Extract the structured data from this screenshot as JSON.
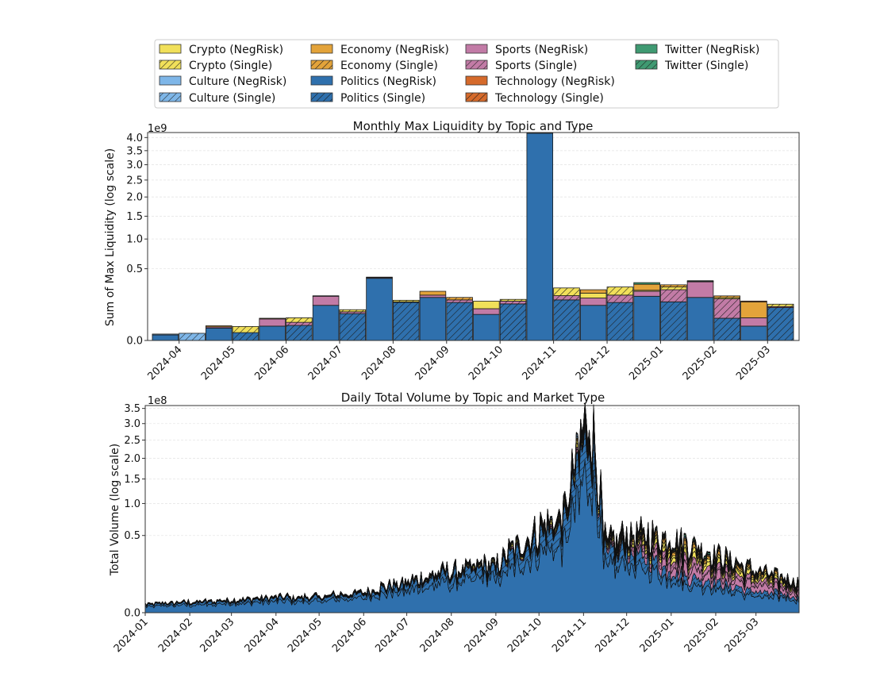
{
  "legend": {
    "entries": [
      {
        "label": "Crypto (NegRisk)",
        "color": "#f1e05a",
        "hatch": false
      },
      {
        "label": "Crypto (Single)",
        "color": "#f1e05a",
        "hatch": true
      },
      {
        "label": "Culture (NegRisk)",
        "color": "#7eb6e8",
        "hatch": false
      },
      {
        "label": "Culture (Single)",
        "color": "#7eb6e8",
        "hatch": true
      },
      {
        "label": "Economy (NegRisk)",
        "color": "#e3a33a",
        "hatch": false
      },
      {
        "label": "Economy (Single)",
        "color": "#e3a33a",
        "hatch": true
      },
      {
        "label": "Politics (NegRisk)",
        "color": "#2f70ad",
        "hatch": false
      },
      {
        "label": "Politics (Single)",
        "color": "#2f70ad",
        "hatch": true
      },
      {
        "label": "Sports (NegRisk)",
        "color": "#c27ba6",
        "hatch": false
      },
      {
        "label": "Sports (Single)",
        "color": "#c27ba6",
        "hatch": true
      },
      {
        "label": "Technology (NegRisk)",
        "color": "#d56a2b",
        "hatch": false
      },
      {
        "label": "Technology (Single)",
        "color": "#d56a2b",
        "hatch": true
      },
      {
        "label": "Twitter (NegRisk)",
        "color": "#3f9a72",
        "hatch": false
      },
      {
        "label": "Twitter (Single)",
        "color": "#3f9a72",
        "hatch": true
      }
    ]
  },
  "chart_data": [
    {
      "type": "bar",
      "stacked": true,
      "title": "Monthly Max Liquidity by Topic and Type",
      "ylabel": "Sum of Max Liquidity (log scale)",
      "multiplier": "1e9",
      "yscale": "sqrt",
      "ylim": [
        0,
        4.2
      ],
      "yticks": [
        "0.0",
        "0.5",
        "1.0",
        "1.5",
        "2.0",
        "2.5",
        "3.0",
        "3.5",
        "4.0"
      ],
      "categories": [
        "2024-04",
        "2024-05",
        "2024-06",
        "2024-07",
        "2024-08",
        "2024-09",
        "2024-10",
        "2024-11",
        "2024-12",
        "2025-01",
        "2025-02",
        "2025-03"
      ],
      "units": "billions",
      "bars": [
        {
          "month": "2024-04",
          "type": "NegRisk",
          "segments": {
            "Politics": 0.003,
            "Culture": 0.001
          }
        },
        {
          "month": "2024-04",
          "type": "Single",
          "segments": {
            "Culture": 0.005
          }
        },
        {
          "month": "2024-05",
          "type": "NegRisk",
          "segments": {
            "Politics": 0.015,
            "Sports": 0.003,
            "Economy": 0.003
          }
        },
        {
          "month": "2024-05",
          "type": "Single",
          "segments": {
            "Politics": 0.006,
            "Crypto": 0.013
          }
        },
        {
          "month": "2024-06",
          "type": "NegRisk",
          "segments": {
            "Politics": 0.02,
            "Sports": 0.025,
            "Economy": 0.003
          }
        },
        {
          "month": "2024-06",
          "type": "Single",
          "segments": {
            "Politics": 0.022,
            "Sports": 0.01,
            "Crypto": 0.018
          }
        },
        {
          "month": "2024-07",
          "type": "NegRisk",
          "segments": {
            "Politics": 0.12,
            "Sports": 0.07,
            "Economy": 0.004
          }
        },
        {
          "month": "2024-07",
          "type": "Single",
          "segments": {
            "Politics": 0.07,
            "Sports": 0.01,
            "Crypto": 0.012
          }
        },
        {
          "month": "2024-08",
          "type": "NegRisk",
          "segments": {
            "Politics": 0.375,
            "Sports": 0.009,
            "Economy": 0.006
          }
        },
        {
          "month": "2024-08",
          "type": "Single",
          "segments": {
            "Politics": 0.141,
            "Sports": 0.004,
            "Crypto": 0.012
          }
        },
        {
          "month": "2024-09",
          "type": "NegRisk",
          "segments": {
            "Politics": 0.18,
            "Sports": 0.02,
            "Economy": 0.035
          }
        },
        {
          "month": "2024-09",
          "type": "Single",
          "segments": {
            "Politics": 0.14,
            "Sports": 0.02,
            "Economy": 0.02
          }
        },
        {
          "month": "2024-10",
          "type": "NegRisk",
          "segments": {
            "Politics": 0.066,
            "Sports": 0.032,
            "Crypto": 0.052
          }
        },
        {
          "month": "2024-10",
          "type": "Single",
          "segments": {
            "Politics": 0.13,
            "Sports": 0.02,
            "Crypto": 0.014
          }
        },
        {
          "month": "2024-11",
          "type": "NegRisk",
          "segments": {
            "Politics": 4.18,
            "Sports": 0.01,
            "Twitter": 0.005
          }
        },
        {
          "month": "2024-11",
          "type": "Single",
          "segments": {
            "Politics": 0.16,
            "Sports": 0.035,
            "Crypto": 0.073
          }
        },
        {
          "month": "2024-12",
          "type": "NegRisk",
          "segments": {
            "Politics": 0.12,
            "Sports": 0.055,
            "Crypto": 0.043,
            "Economy": 0.032
          }
        },
        {
          "month": "2024-12",
          "type": "Single",
          "segments": {
            "Politics": 0.14,
            "Sports": 0.06,
            "Crypto": 0.078
          }
        },
        {
          "month": "2025-01",
          "type": "NegRisk",
          "segments": {
            "Politics": 0.19,
            "Sports": 0.045,
            "Crypto": 0.01,
            "Economy": 0.062,
            "Twitter": 0.018
          }
        },
        {
          "month": "2025-01",
          "type": "Single",
          "segments": {
            "Politics": 0.145,
            "Sports": 0.105,
            "Crypto": 0.028,
            "Economy": 0.023
          }
        },
        {
          "month": "2025-02",
          "type": "NegRisk",
          "segments": {
            "Politics": 0.18,
            "Sports": 0.155,
            "Twitter": 0.008,
            "Technology": 0.004
          }
        },
        {
          "month": "2025-02",
          "type": "Single",
          "segments": {
            "Politics": 0.048,
            "Sports": 0.12,
            "Crypto": 0.01,
            "Economy": 0.015
          }
        },
        {
          "month": "2025-03",
          "type": "NegRisk",
          "segments": {
            "Politics": 0.02,
            "Sports": 0.03,
            "Economy": 0.095,
            "Technology": 0.006
          }
        },
        {
          "month": "2025-03",
          "type": "Single",
          "segments": {
            "Politics": 0.105,
            "Sports": 0.007,
            "Crypto": 0.016
          }
        }
      ]
    },
    {
      "type": "area",
      "stacked": true,
      "title": "Daily Total Volume by Topic and Market Type",
      "ylabel": "Total Volume (log scale)",
      "multiplier": "1e8",
      "yscale": "sqrt",
      "ylim": [
        0,
        3.6
      ],
      "yticks": [
        "0.0",
        "0.5",
        "1.0",
        "1.5",
        "2.0",
        "2.5",
        "3.0",
        "3.5"
      ],
      "xticks": [
        "2024-01",
        "2024-02",
        "2024-03",
        "2024-04",
        "2024-05",
        "2024-06",
        "2024-07",
        "2024-08",
        "2024-09",
        "2024-10",
        "2024-11",
        "2024-12",
        "2025-01",
        "2025-02",
        "2025-03"
      ],
      "x_start": "2024-01-01",
      "x_end": "2025-03-31",
      "units": "hundred millions",
      "approx_total_envelope": [
        {
          "x": "2024-01-01",
          "y": 0.006
        },
        {
          "x": "2024-02-01",
          "y": 0.01
        },
        {
          "x": "2024-03-01",
          "y": 0.014
        },
        {
          "x": "2024-04-01",
          "y": 0.02
        },
        {
          "x": "2024-05-01",
          "y": 0.022
        },
        {
          "x": "2024-06-01",
          "y": 0.035
        },
        {
          "x": "2024-07-01",
          "y": 0.08
        },
        {
          "x": "2024-08-01",
          "y": 0.15
        },
        {
          "x": "2024-09-01",
          "y": 0.2
        },
        {
          "x": "2024-10-01",
          "y": 0.6
        },
        {
          "x": "2024-10-20",
          "y": 0.9
        },
        {
          "x": "2024-11-05",
          "y": 3.45
        },
        {
          "x": "2024-11-15",
          "y": 0.45
        },
        {
          "x": "2024-12-01",
          "y": 0.55
        },
        {
          "x": "2025-01-01",
          "y": 0.5
        },
        {
          "x": "2025-02-01",
          "y": 0.3
        },
        {
          "x": "2025-03-01",
          "y": 0.15
        },
        {
          "x": "2025-03-31",
          "y": 0.08
        }
      ],
      "series_order": [
        "Politics (NegRisk)",
        "Politics (Single)",
        "Sports (NegRisk)",
        "Sports (Single)",
        "Crypto (NegRisk)",
        "Crypto (Single)",
        "Economy (NegRisk)",
        "Economy (Single)",
        "Culture (NegRisk)",
        "Culture (Single)",
        "Twitter (NegRisk)",
        "Twitter (Single)",
        "Technology (NegRisk)",
        "Technology (Single)"
      ]
    }
  ]
}
